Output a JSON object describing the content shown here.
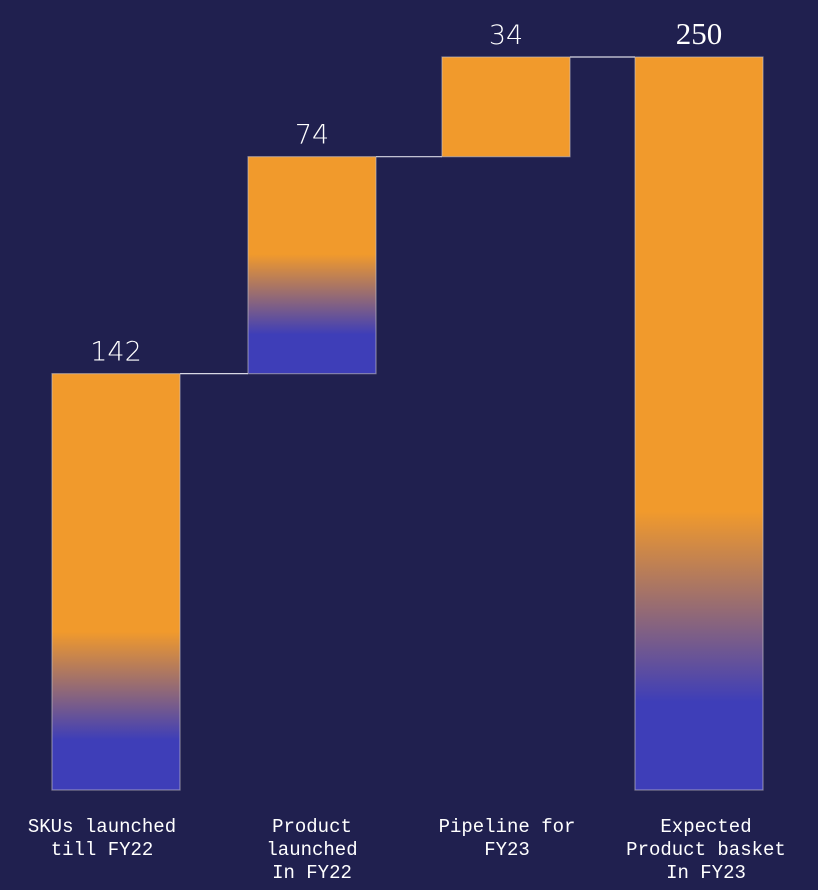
{
  "chart_data": {
    "type": "bar",
    "subtype": "waterfall",
    "title": "",
    "xlabel": "",
    "ylabel": "",
    "ylim": [
      0,
      250
    ],
    "grid": false,
    "legend": "none",
    "categories": [
      "SKUs launched\ntill FY22",
      "Product\nlaunched\nIn FY22",
      "Pipeline for\nFY23",
      "Expected\nProduct basket\nIn FY23"
    ],
    "values": [
      142,
      74,
      34,
      250
    ],
    "bar_kinds": [
      "total",
      "increment",
      "increment",
      "total"
    ],
    "data_labels": [
      "142",
      "74",
      "34",
      "250"
    ],
    "colors": {
      "background": "#20204f",
      "bar_top": "#f19a2c",
      "bar_bottom": "#3e3eb8",
      "connector": "#d8d8e4",
      "text": "#ffffff"
    }
  }
}
